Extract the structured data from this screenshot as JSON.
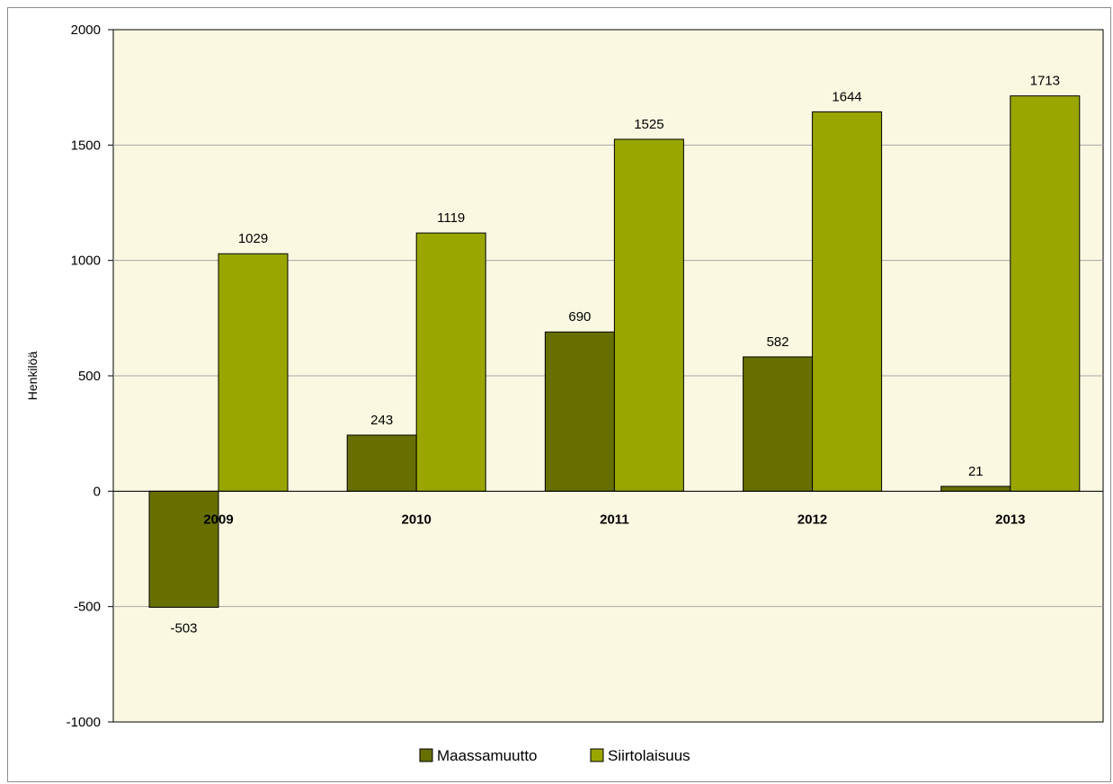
{
  "colors": {
    "plot_background": "#fbf8e1",
    "Maassamuutto": "#666f00",
    "Siirtolaisuus": "#99a600",
    "gridline": "#a6a6a6",
    "bar_border": "#000000"
  },
  "chart_data": {
    "type": "bar",
    "categories": [
      "2009",
      "2010",
      "2011",
      "2012",
      "2013"
    ],
    "series": [
      {
        "name": "Maassamuutto",
        "values": [
          -503,
          243,
          690,
          582,
          21
        ]
      },
      {
        "name": "Siirtolaisuus",
        "values": [
          1029,
          1119,
          1525,
          1644,
          1713
        ]
      }
    ],
    "title": "",
    "xlabel": "",
    "ylabel": "Henkilöä",
    "ylim": [
      -1000,
      2000
    ],
    "yticks": [
      "2000",
      "1500",
      "1000",
      "500",
      "0",
      "-500",
      "-1000"
    ],
    "grid": true,
    "legend": "bottom"
  }
}
